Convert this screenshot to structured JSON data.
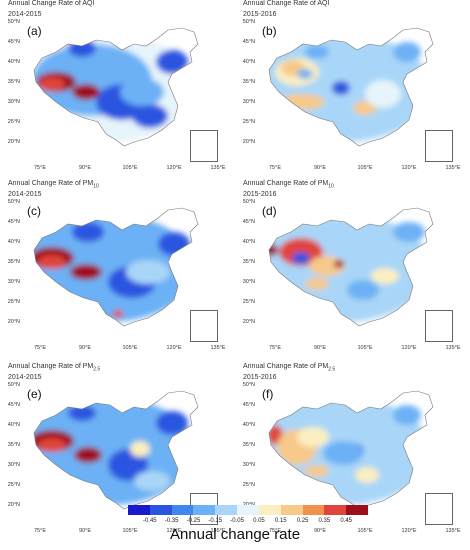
{
  "panels": [
    {
      "id": "a",
      "tag": "(a)",
      "title_pre": "Annual Change Rate of ",
      "title_main": "AQI",
      "title_sub": "",
      "period": "2014-2015"
    },
    {
      "id": "b",
      "tag": "(b)",
      "title_pre": "Annual Change Rate of ",
      "title_main": "AQI",
      "title_sub": "",
      "period": "2015-2016"
    },
    {
      "id": "c",
      "tag": "(c)",
      "title_pre": "Annual Change Rate of ",
      "title_main": "PM",
      "title_sub": "10",
      "period": "2014-2015"
    },
    {
      "id": "d",
      "tag": "(d)",
      "title_pre": "Annual Change Rate of ",
      "title_main": "PM",
      "title_sub": "10",
      "period": "2015-2016"
    },
    {
      "id": "e",
      "tag": "(e)",
      "title_pre": "Annual Change Rate of ",
      "title_main": "PM",
      "title_sub": "2.5",
      "period": "2014-2015"
    },
    {
      "id": "f",
      "tag": "(f)",
      "title_pre": "Annual Change Rate of ",
      "title_main": "PM",
      "title_sub": "2.5",
      "period": "2015-2016"
    }
  ],
  "lat_ticks": [
    "50°N",
    "45°N",
    "40°N",
    "35°N",
    "30°N",
    "25°N",
    "20°N"
  ],
  "lon_ticks": [
    "75°E",
    "90°E",
    "105°E",
    "120°E",
    "135°E"
  ],
  "colorbar": {
    "label": "Annual change rate",
    "ticks": [
      "-0.45",
      "-0.35",
      "-0.25",
      "-0.15",
      "-0.05",
      "0.05",
      "0.15",
      "0.25",
      "0.35",
      "0.45"
    ],
    "colors": [
      "#1a1acd",
      "#2a55e0",
      "#3f86ee",
      "#6cb1f5",
      "#a9d6f8",
      "#e6f4fb",
      "#fbefc0",
      "#f7c98a",
      "#f0924e",
      "#e0443a",
      "#9e0f1d"
    ]
  },
  "map_palette": {
    "strong_decrease": "#2a55e0",
    "decrease": "#6cb1f5",
    "slight_decrease": "#a9d6f8",
    "neutral": "#e6f4fb",
    "slight_increase": "#fbefc0",
    "increase": "#f7c98a",
    "strong_increase": "#9e0f1d",
    "moderate_increase": "#e0443a"
  }
}
